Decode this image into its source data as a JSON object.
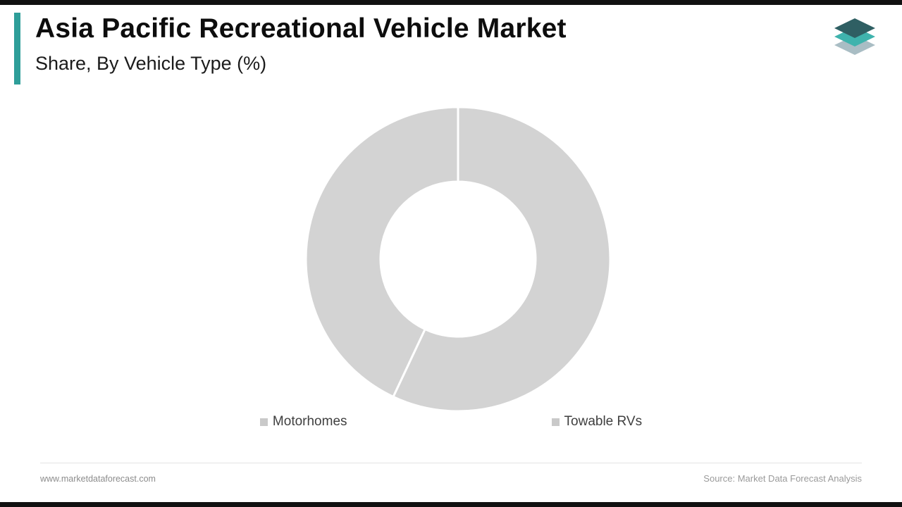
{
  "header": {
    "title_line1": "Asia Pacific Recreational Vehicle Market",
    "title_line2": "Share, By Vehicle Type (%)"
  },
  "chart_data": {
    "type": "pie",
    "subtype": "donut",
    "title": "Asia Pacific Recreational Vehicle Market Share, By Vehicle Type (%)",
    "categories": [
      "Motorhomes",
      "Towable RVs"
    ],
    "values": [
      57,
      43
    ],
    "unit": "%",
    "colors": [
      "#d3d3d3",
      "#d3d3d3"
    ],
    "slice_border_color": "#ffffff",
    "start_angle_deg": 0,
    "inner_radius_ratio": 0.51,
    "legend_position": "bottom",
    "legend_marker_color": "#c9c9c9"
  },
  "footer": {
    "website": "www.marketdataforecast.com",
    "source": "Source: Market Data Forecast Analysis"
  },
  "theme": {
    "accent_color": "#2E9E99",
    "frame_bar_color": "#111111",
    "logo_colors": [
      "#a9bdc4",
      "#3fb3ad",
      "#2f5f63"
    ]
  }
}
